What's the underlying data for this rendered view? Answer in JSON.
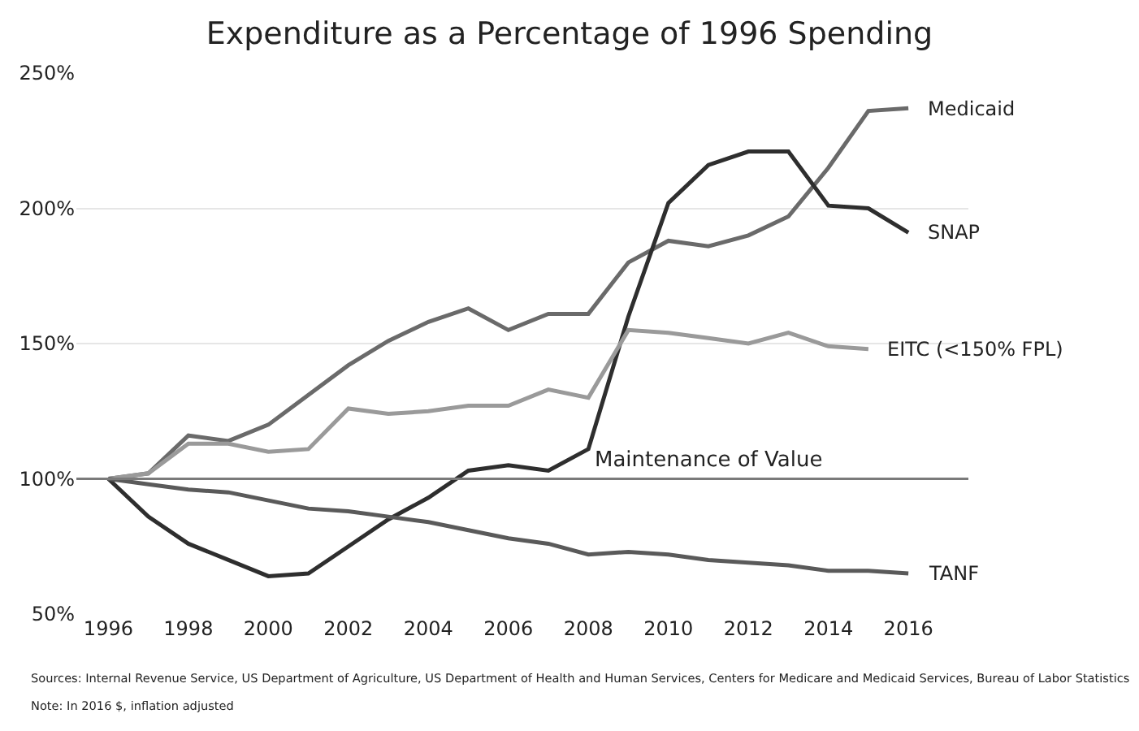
{
  "chart_data": {
    "type": "line",
    "title": "Expenditure as a Percentage of 1996 Spending",
    "x": [
      1996,
      1997,
      1998,
      1999,
      2000,
      2001,
      2002,
      2003,
      2004,
      2005,
      2006,
      2007,
      2008,
      2009,
      2010,
      2011,
      2012,
      2013,
      2014,
      2015,
      2016
    ],
    "series": [
      {
        "name": "Medicaid",
        "color": "#6a6a6a",
        "values": [
          100,
          102,
          116,
          114,
          120,
          131,
          142,
          151,
          158,
          163,
          155,
          161,
          161,
          180,
          188,
          186,
          190,
          197,
          215,
          236,
          237
        ]
      },
      {
        "name": "SNAP",
        "color": "#2e2e2e",
        "values": [
          100,
          86,
          76,
          70,
          64,
          65,
          75,
          85,
          93,
          103,
          105,
          103,
          111,
          160,
          202,
          216,
          221,
          221,
          201,
          200,
          191
        ]
      },
      {
        "name": "EITC (<150% FPL)",
        "color": "#9a9a9a",
        "values": [
          100,
          102,
          113,
          113,
          110,
          111,
          126,
          124,
          125,
          127,
          127,
          133,
          130,
          155,
          154,
          152,
          150,
          154,
          149,
          148,
          null
        ]
      },
      {
        "name": "TANF",
        "color": "#5a5a5a",
        "values": [
          100,
          98,
          96,
          95,
          92,
          89,
          88,
          86,
          84,
          81,
          78,
          76,
          72,
          73,
          72,
          70,
          69,
          68,
          66,
          66,
          65
        ]
      }
    ],
    "xlim": [
      1995.2,
      2017.5
    ],
    "xticks": [
      1996,
      1998,
      2000,
      2002,
      2004,
      2006,
      2008,
      2010,
      2012,
      2014,
      2016
    ],
    "ylim": [
      50,
      250
    ],
    "yticks": [
      {
        "value": 50,
        "label": "50%"
      },
      {
        "value": 100,
        "label": "100%"
      },
      {
        "value": 150,
        "label": "150%"
      },
      {
        "value": 200,
        "label": "200%"
      },
      {
        "value": 250,
        "label": "250%"
      }
    ],
    "grid": "y",
    "legend": false,
    "marker": "none",
    "line_style": "solid",
    "ref_lines": [
      {
        "axis": "y",
        "value": 100,
        "label": "Maintenance of Value",
        "color": "#7a7a7a"
      }
    ],
    "annotations": [
      "Sources: Internal Revenue Service, US Department of Agriculture, US Department of Health and Human Services, Centers for Medicare and Medicaid Services, Bureau of Labor Statistics",
      "Note: In 2016 $, inflation adjusted"
    ]
  }
}
